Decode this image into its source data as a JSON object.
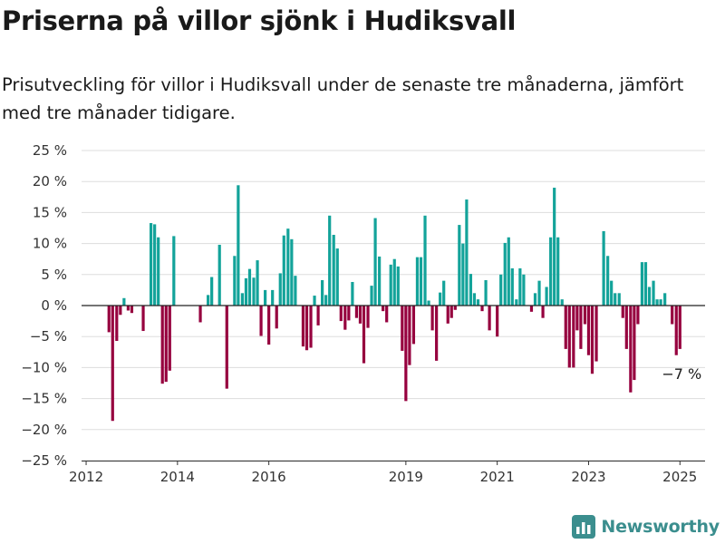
{
  "header": {
    "title": "Priserna på villor sjönk i Hudiksvall",
    "subtitle": "Prisutveckling för villor i Hudiksvall under de senaste tre månaderna, jämfört med tre månader tidigare."
  },
  "brand": {
    "name": "Newsworthy",
    "icon": "bar-chart-logo-icon",
    "color": "#3b8e8e"
  },
  "colors": {
    "positive": "#13a39a",
    "negative": "#96003e",
    "zero_line": "#222222",
    "grid": "#dddddd"
  },
  "chart_data": {
    "type": "bar",
    "title": "Priserna på villor sjönk i Hudiksvall",
    "ylim": [
      -25,
      25
    ],
    "y_ticks": [
      -25,
      -20,
      -15,
      -10,
      -5,
      0,
      5,
      10,
      15,
      20,
      25
    ],
    "y_tick_labels": [
      "−25 %",
      "−20 %",
      "−15 %",
      "−10 %",
      "−5 %",
      "0 %",
      "5 %",
      "10 %",
      "15 %",
      "20 %",
      "25 %"
    ],
    "x_ticks": [
      "2012",
      "2014",
      "2016",
      "2019",
      "2021",
      "2023",
      "2025"
    ],
    "x_tick_positions": [
      2012.0,
      2014.0,
      2016.0,
      2019.0,
      2021.0,
      2023.0,
      2025.0
    ],
    "x_range": [
      2011.9,
      2025.55
    ],
    "grid": true,
    "bars": [
      {
        "x": 2012.5,
        "value": -4.3
      },
      {
        "x": 2012.58,
        "value": -18.6
      },
      {
        "x": 2012.67,
        "value": -5.7
      },
      {
        "x": 2012.75,
        "value": -1.5
      },
      {
        "x": 2012.83,
        "value": 1.2
      },
      {
        "x": 2012.92,
        "value": -0.8
      },
      {
        "x": 2013.0,
        "value": -1.2
      },
      {
        "x": 2013.25,
        "value": -4.1
      },
      {
        "x": 2013.42,
        "value": 13.3
      },
      {
        "x": 2013.5,
        "value": 13.1
      },
      {
        "x": 2013.58,
        "value": 11.0
      },
      {
        "x": 2013.67,
        "value": -12.6
      },
      {
        "x": 2013.75,
        "value": -12.3
      },
      {
        "x": 2013.83,
        "value": -10.5
      },
      {
        "x": 2013.92,
        "value": 11.2
      },
      {
        "x": 2014.5,
        "value": -2.7
      },
      {
        "x": 2014.67,
        "value": 1.7
      },
      {
        "x": 2014.75,
        "value": 4.6
      },
      {
        "x": 2014.92,
        "value": 9.8
      },
      {
        "x": 2015.08,
        "value": -13.4
      },
      {
        "x": 2015.25,
        "value": 8.0
      },
      {
        "x": 2015.33,
        "value": 19.4
      },
      {
        "x": 2015.42,
        "value": 2.0
      },
      {
        "x": 2015.5,
        "value": 4.4
      },
      {
        "x": 2015.58,
        "value": 5.9
      },
      {
        "x": 2015.67,
        "value": 4.5
      },
      {
        "x": 2015.75,
        "value": 7.3
      },
      {
        "x": 2015.83,
        "value": -4.9
      },
      {
        "x": 2015.92,
        "value": 2.5
      },
      {
        "x": 2016.0,
        "value": -6.3
      },
      {
        "x": 2016.08,
        "value": 2.5
      },
      {
        "x": 2016.17,
        "value": -3.7
      },
      {
        "x": 2016.25,
        "value": 5.2
      },
      {
        "x": 2016.33,
        "value": 11.3
      },
      {
        "x": 2016.42,
        "value": 12.4
      },
      {
        "x": 2016.5,
        "value": 10.7
      },
      {
        "x": 2016.58,
        "value": 4.8
      },
      {
        "x": 2016.75,
        "value": -6.6
      },
      {
        "x": 2016.83,
        "value": -7.2
      },
      {
        "x": 2016.92,
        "value": -6.8
      },
      {
        "x": 2017.0,
        "value": 1.6
      },
      {
        "x": 2017.08,
        "value": -3.2
      },
      {
        "x": 2017.17,
        "value": 4.1
      },
      {
        "x": 2017.25,
        "value": 1.7
      },
      {
        "x": 2017.33,
        "value": 14.5
      },
      {
        "x": 2017.42,
        "value": 11.4
      },
      {
        "x": 2017.5,
        "value": 9.2
      },
      {
        "x": 2017.58,
        "value": -2.5
      },
      {
        "x": 2017.67,
        "value": -3.9
      },
      {
        "x": 2017.75,
        "value": -2.4
      },
      {
        "x": 2017.83,
        "value": 3.8
      },
      {
        "x": 2017.92,
        "value": -2.0
      },
      {
        "x": 2018.0,
        "value": -2.9
      },
      {
        "x": 2018.08,
        "value": -9.3
      },
      {
        "x": 2018.17,
        "value": -3.6
      },
      {
        "x": 2018.25,
        "value": 3.2
      },
      {
        "x": 2018.33,
        "value": 14.1
      },
      {
        "x": 2018.42,
        "value": 7.9
      },
      {
        "x": 2018.5,
        "value": -0.9
      },
      {
        "x": 2018.58,
        "value": -2.7
      },
      {
        "x": 2018.67,
        "value": 6.6
      },
      {
        "x": 2018.75,
        "value": 7.5
      },
      {
        "x": 2018.83,
        "value": 6.3
      },
      {
        "x": 2018.92,
        "value": -7.3
      },
      {
        "x": 2019.0,
        "value": -15.4
      },
      {
        "x": 2019.08,
        "value": -9.6
      },
      {
        "x": 2019.17,
        "value": -6.2
      },
      {
        "x": 2019.25,
        "value": 7.8
      },
      {
        "x": 2019.33,
        "value": 7.8
      },
      {
        "x": 2019.42,
        "value": 14.5
      },
      {
        "x": 2019.5,
        "value": 0.8
      },
      {
        "x": 2019.58,
        "value": -4.0
      },
      {
        "x": 2019.67,
        "value": -8.9
      },
      {
        "x": 2019.75,
        "value": 2.1
      },
      {
        "x": 2019.83,
        "value": 4.0
      },
      {
        "x": 2019.92,
        "value": -2.9
      },
      {
        "x": 2020.0,
        "value": -2.0
      },
      {
        "x": 2020.08,
        "value": -0.7
      },
      {
        "x": 2020.17,
        "value": 13.0
      },
      {
        "x": 2020.25,
        "value": 10.0
      },
      {
        "x": 2020.33,
        "value": 17.1
      },
      {
        "x": 2020.42,
        "value": 5.1
      },
      {
        "x": 2020.5,
        "value": 2.0
      },
      {
        "x": 2020.58,
        "value": 1.0
      },
      {
        "x": 2020.67,
        "value": -0.9
      },
      {
        "x": 2020.75,
        "value": 4.1
      },
      {
        "x": 2020.83,
        "value": -4.0
      },
      {
        "x": 2021.0,
        "value": -5.0
      },
      {
        "x": 2021.08,
        "value": 5.0
      },
      {
        "x": 2021.17,
        "value": 10.1
      },
      {
        "x": 2021.25,
        "value": 11.0
      },
      {
        "x": 2021.33,
        "value": 6.0
      },
      {
        "x": 2021.42,
        "value": 1.0
      },
      {
        "x": 2021.5,
        "value": 6.0
      },
      {
        "x": 2021.58,
        "value": 5.0
      },
      {
        "x": 2021.75,
        "value": -1.0
      },
      {
        "x": 2021.83,
        "value": 2.0
      },
      {
        "x": 2021.92,
        "value": 4.0
      },
      {
        "x": 2022.0,
        "value": -2.0
      },
      {
        "x": 2022.08,
        "value": 3.0
      },
      {
        "x": 2022.17,
        "value": 11.0
      },
      {
        "x": 2022.25,
        "value": 19.0
      },
      {
        "x": 2022.33,
        "value": 11.0
      },
      {
        "x": 2022.42,
        "value": 1.0
      },
      {
        "x": 2022.5,
        "value": -7.0
      },
      {
        "x": 2022.58,
        "value": -10.0
      },
      {
        "x": 2022.67,
        "value": -10.0
      },
      {
        "x": 2022.75,
        "value": -4.0
      },
      {
        "x": 2022.83,
        "value": -7.0
      },
      {
        "x": 2022.92,
        "value": -3.0
      },
      {
        "x": 2023.0,
        "value": -8.0
      },
      {
        "x": 2023.08,
        "value": -11.0
      },
      {
        "x": 2023.17,
        "value": -9.0
      },
      {
        "x": 2023.33,
        "value": 12.0
      },
      {
        "x": 2023.42,
        "value": 8.0
      },
      {
        "x": 2023.5,
        "value": 4.0
      },
      {
        "x": 2023.58,
        "value": 2.0
      },
      {
        "x": 2023.67,
        "value": 2.0
      },
      {
        "x": 2023.75,
        "value": -2.0
      },
      {
        "x": 2023.83,
        "value": -7.0
      },
      {
        "x": 2023.92,
        "value": -14.0
      },
      {
        "x": 2024.0,
        "value": -12.0
      },
      {
        "x": 2024.08,
        "value": -3.0
      },
      {
        "x": 2024.17,
        "value": 7.0
      },
      {
        "x": 2024.25,
        "value": 7.0
      },
      {
        "x": 2024.33,
        "value": 3.0
      },
      {
        "x": 2024.42,
        "value": 4.0
      },
      {
        "x": 2024.5,
        "value": 1.0
      },
      {
        "x": 2024.58,
        "value": 1.0
      },
      {
        "x": 2024.67,
        "value": 2.0
      },
      {
        "x": 2024.83,
        "value": -3.0
      },
      {
        "x": 2024.92,
        "value": -8.0
      },
      {
        "x": 2025.0,
        "value": -7.0
      }
    ],
    "annotation": {
      "text": "−7 %",
      "x": 2025.0,
      "value": -7.0
    }
  }
}
